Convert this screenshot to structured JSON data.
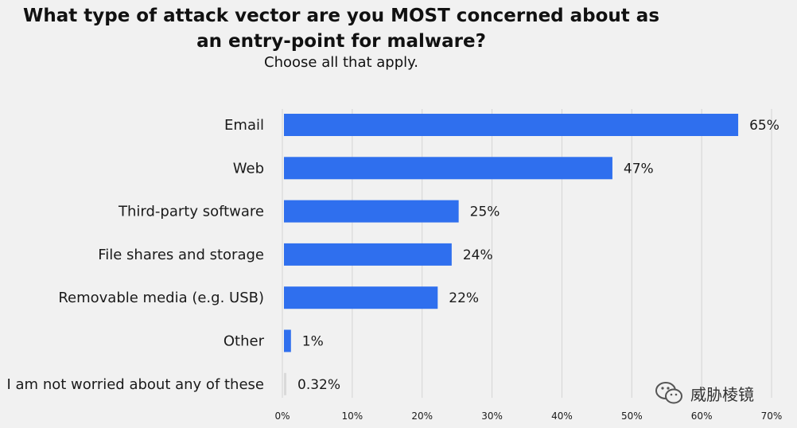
{
  "title_lines": [
    "What type of attack vector are you MOST concerned about as",
    "an entry-point for malware?"
  ],
  "subtitle": "Choose all that apply.",
  "watermark_text": "威胁棱镜",
  "colors": {
    "bar": "#2f6fee",
    "bar_small": "#d9d9d9",
    "background": "#f1f1f1"
  },
  "chart_data": {
    "type": "bar",
    "orientation": "horizontal",
    "categories": [
      "Email",
      "Web",
      "Third-party software",
      "File shares and storage",
      "Removable media (e.g. USB)",
      "Other",
      "I am not worried about any of these"
    ],
    "values": [
      65,
      47,
      25,
      24,
      22,
      1,
      0.32
    ],
    "value_labels": [
      "65%",
      "47%",
      "25%",
      "24%",
      "22%",
      "1%",
      "0.32%"
    ],
    "xlim": [
      0,
      70
    ],
    "x_ticks": [
      "0%",
      "10%",
      "20%",
      "30%",
      "40%",
      "50%",
      "60%",
      "70%"
    ],
    "grid": true,
    "legend": "none"
  }
}
